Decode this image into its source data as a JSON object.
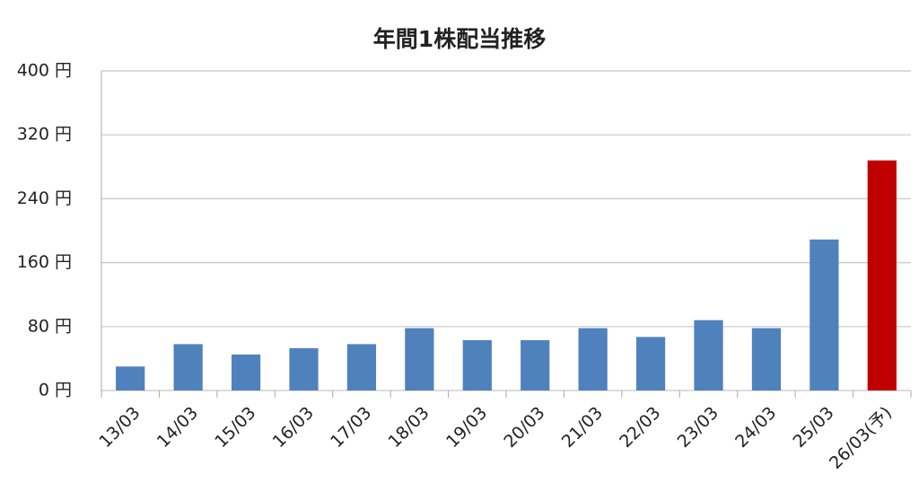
{
  "chart_data": {
    "type": "bar",
    "title": "年間1株配当推移",
    "categories": [
      "13/03",
      "14/03",
      "15/03",
      "16/03",
      "17/03",
      "18/03",
      "19/03",
      "20/03",
      "21/03",
      "22/03",
      "23/03",
      "24/03",
      "25/03",
      "26/03(予)"
    ],
    "values": [
      30,
      58,
      45,
      53,
      58,
      78,
      63,
      63,
      78,
      67,
      88,
      78,
      189,
      288
    ],
    "colors": [
      "#4f81bd",
      "#4f81bd",
      "#4f81bd",
      "#4f81bd",
      "#4f81bd",
      "#4f81bd",
      "#4f81bd",
      "#4f81bd",
      "#4f81bd",
      "#4f81bd",
      "#4f81bd",
      "#4f81bd",
      "#4f81bd",
      "#c00000"
    ],
    "ylim": [
      0,
      400
    ],
    "yticks": [
      {
        "value": 0,
        "label": "0 円"
      },
      {
        "value": 80,
        "label": "80 円"
      },
      {
        "value": 160,
        "label": "160 円"
      },
      {
        "value": 240,
        "label": "240 円"
      },
      {
        "value": 320,
        "label": "320 円"
      },
      {
        "value": 400,
        "label": "400 円"
      }
    ],
    "grid": true
  }
}
